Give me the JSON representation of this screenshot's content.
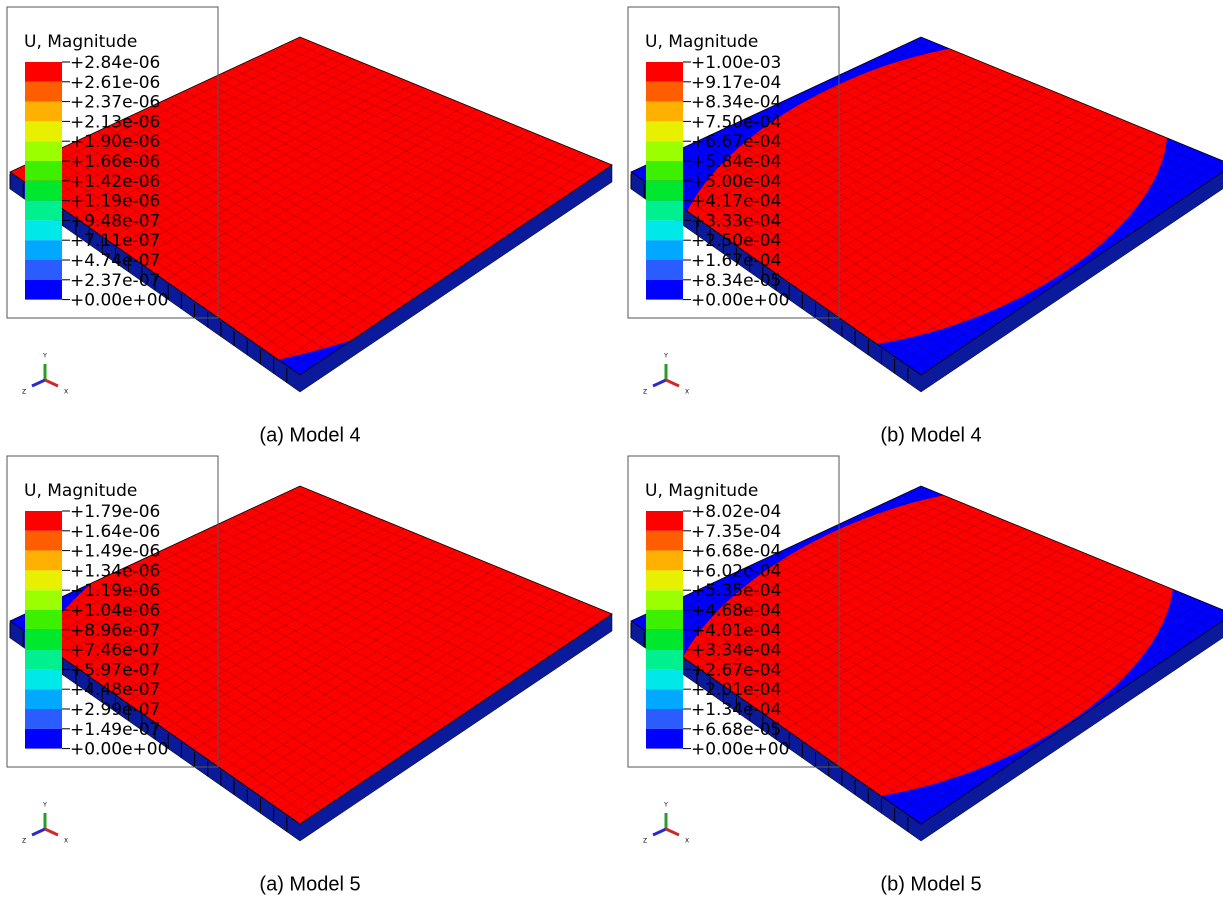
{
  "triad": {
    "y": "Y",
    "z": "Z",
    "x": "X"
  },
  "panels": [
    {
      "legend_title": "U, Magnitude",
      "caption": "(a) Model 4",
      "legend_labels": [
        "+2.84e-06",
        "+2.61e-06",
        "+2.37e-06",
        "+2.13e-06",
        "+1.90e-06",
        "+1.66e-06",
        "+1.42e-06",
        "+1.19e-06",
        "+9.48e-07",
        "+7.11e-07",
        "+4.74e-07",
        "+2.37e-07",
        "+0.00e+00"
      ]
    },
    {
      "legend_title": "U, Magnitude",
      "caption": "(b) Model 4",
      "legend_labels": [
        "+1.00e-03",
        "+9.17e-04",
        "+8.34e-04",
        "+7.50e-04",
        "+6.67e-04",
        "+5.84e-04",
        "+5.00e-04",
        "+4.17e-04",
        "+3.33e-04",
        "+2.50e-04",
        "+1.67e-04",
        "+8.34e-05",
        "+0.00e+00"
      ]
    },
    {
      "legend_title": "U, Magnitude",
      "caption": "(a) Model 5",
      "legend_labels": [
        "+1.79e-06",
        "+1.64e-06",
        "+1.49e-06",
        "+1.34e-06",
        "+1.19e-06",
        "+1.04e-06",
        "+8.96e-07",
        "+7.46e-07",
        "+5.97e-07",
        "+4.48e-07",
        "+2.99e-07",
        "+1.49e-07",
        "+0.00e+00"
      ]
    },
    {
      "legend_title": "U, Magnitude",
      "caption": "(b) Model 5",
      "legend_labels": [
        "+8.02e-04",
        "+7.35e-04",
        "+6.68e-04",
        "+6.02e-04",
        "+5.35e-04",
        "+4.68e-04",
        "+4.01e-04",
        "+3.34e-04",
        "+2.67e-04",
        "+2.01e-04",
        "+1.34e-04",
        "+6.68e-05",
        "+0.00e+00"
      ]
    }
  ]
}
